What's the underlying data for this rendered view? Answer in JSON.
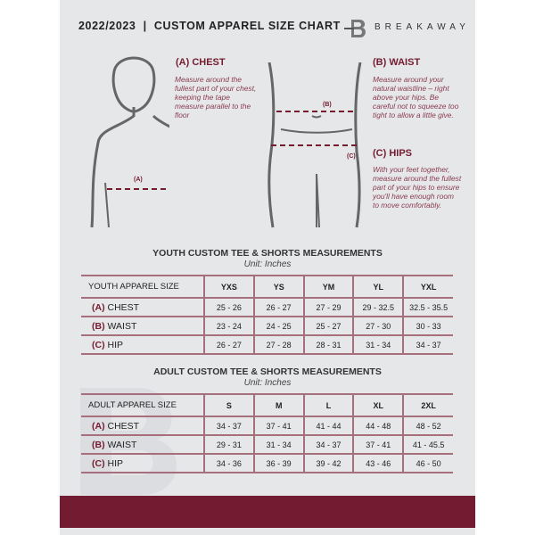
{
  "header": {
    "title": "2022/2023  |  CUSTOM APPAREL SIZE CHART",
    "brand": "BREAKAWAY"
  },
  "measures": {
    "chest": {
      "title": "(A) CHEST",
      "label": "(A)",
      "desc": "Measure around the fullest part of your chest, keeping the tape measure parallel to the floor"
    },
    "waist": {
      "title": "(B) WAIST",
      "label": "(B)",
      "desc": "Measure around your natural waistline – right above your hips. Be careful not to squeeze too tight to allow a little give."
    },
    "hips": {
      "title": "(C) HIPS",
      "label": "(C)",
      "desc": "With your feet together, measure around the fullest part of your hips to ensure you'll have enough room to move comfortably."
    }
  },
  "youth": {
    "title": "YOUTH CUSTOM TEE & SHORTS MEASUREMENTS",
    "unit": "Unit: Inches",
    "header": [
      "YOUTH APPAREL SIZE",
      "YXS",
      "YS",
      "YM",
      "YL",
      "YXL"
    ],
    "rows": [
      {
        "code": "(A)",
        "name": "CHEST",
        "values": [
          "25 - 26",
          "26 - 27",
          "27 - 29",
          "29 - 32.5",
          "32.5 - 35.5"
        ]
      },
      {
        "code": "(B)",
        "name": "WAIST",
        "values": [
          "23 - 24",
          "24 - 25",
          "25 - 27",
          "27 - 30",
          "30 - 33"
        ]
      },
      {
        "code": "(C)",
        "name": "HIP",
        "values": [
          "26 - 27",
          "27 - 28",
          "28 - 31",
          "31 - 34",
          "34 - 37"
        ]
      }
    ]
  },
  "adult": {
    "title": "ADULT CUSTOM TEE & SHORTS MEASUREMENTS",
    "unit": "Unit: Inches",
    "header": [
      "ADULT APPAREL SIZE",
      "S",
      "M",
      "L",
      "XL",
      "2XL"
    ],
    "rows": [
      {
        "code": "(A)",
        "name": "CHEST",
        "values": [
          "34 - 37",
          "37 - 41",
          "41 - 44",
          "44 - 48",
          "48 - 52"
        ]
      },
      {
        "code": "(B)",
        "name": "WAIST",
        "values": [
          "29 - 31",
          "31 - 34",
          "34 - 37",
          "37 - 41",
          "41 - 45.5"
        ]
      },
      {
        "code": "(C)",
        "name": "HIP",
        "values": [
          "34 - 36",
          "36 - 39",
          "39 - 42",
          "43 - 46",
          "46 - 50"
        ]
      }
    ]
  },
  "colors": {
    "accent": "#731b30",
    "background": "#e6e7e9"
  }
}
